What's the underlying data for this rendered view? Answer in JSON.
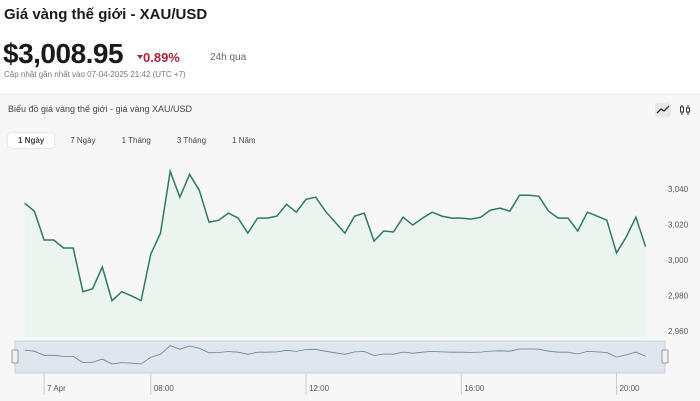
{
  "header": {
    "title": "Giá vàng thế giới - XAU/USD",
    "price": "$3,008.95",
    "change": "0.89%",
    "change_period": "24h qua",
    "updated": "Cập nhật gần nhất vào 07-04-2025 21:42 (UTC +7)"
  },
  "panel": {
    "title": "Biểu đồ giá vàng thế giới - giá vàng XAU/USD",
    "tabs": [
      "1 Ngày",
      "7 Ngày",
      "1 Tháng",
      "3 Tháng",
      "1 Năm"
    ]
  },
  "chart_data": {
    "type": "line",
    "color": "#2f7a5f",
    "x": [
      4.75,
      5,
      5.25,
      5.5,
      5.75,
      6,
      6.25,
      6.5,
      6.75,
      7,
      7.25,
      7.5,
      7.75,
      8,
      8.25,
      8.5,
      8.75,
      9,
      9.25,
      9.5,
      9.75,
      10,
      10.25,
      10.5,
      10.75,
      11,
      11.25,
      11.5,
      11.75,
      12,
      12.25,
      12.5,
      12.75,
      13,
      13.25,
      13.5,
      13.75,
      14,
      14.25,
      14.5,
      14.75,
      15,
      15.25,
      15.5,
      15.75,
      16,
      16.25,
      16.5,
      16.75,
      17,
      17.25,
      17.5,
      17.75,
      18,
      18.25,
      18.5,
      18.75,
      19,
      19.25,
      19.5,
      19.75,
      20,
      20.25,
      20.5,
      20.75
    ],
    "values": [
      3032.6,
      3028.1,
      3011.8,
      3011.8,
      3007.3,
      3007.3,
      2982.6,
      2984.3,
      2996.6,
      2977.5,
      2982.6,
      2980.3,
      2977.5,
      3003.9,
      3015.7,
      3050.6,
      3036,
      3048.9,
      3039.9,
      3021.9,
      3023,
      3027,
      3024.2,
      3015.7,
      3024.2,
      3024.2,
      3025.3,
      3032,
      3027.5,
      3034.8,
      3036,
      3028.1,
      3021.9,
      3015.7,
      3025.3,
      3027,
      3011.2,
      3016.9,
      3016.3,
      3024.7,
      3020.2,
      3024.2,
      3027.5,
      3025.3,
      3024.2,
      3024.2,
      3023.6,
      3024.7,
      3028.7,
      3029.8,
      3028.1,
      3037.1,
      3037.1,
      3036.5,
      3028.1,
      3024.2,
      3024.2,
      3016.9,
      3027.5,
      3025.3,
      3023,
      3004.5,
      3013.5,
      3024.7,
      3008
    ],
    "xlim": [
      4.5,
      21.25
    ],
    "xticks": [
      {
        "value": 5.25,
        "label": "7 Apr"
      },
      {
        "value": 8,
        "label": "08:00"
      },
      {
        "value": 12,
        "label": "12:00"
      },
      {
        "value": 16,
        "label": "16:00"
      },
      {
        "value": 20,
        "label": "20:00"
      }
    ],
    "ylim": [
      2957,
      3057
    ],
    "yticks": [
      {
        "value": 2960,
        "label": "2,960"
      },
      {
        "value": 2980,
        "label": "2,980"
      },
      {
        "value": 3000,
        "label": "3,000"
      },
      {
        "value": 3020,
        "label": "3,020"
      },
      {
        "value": 3040,
        "label": "3,040"
      }
    ]
  }
}
